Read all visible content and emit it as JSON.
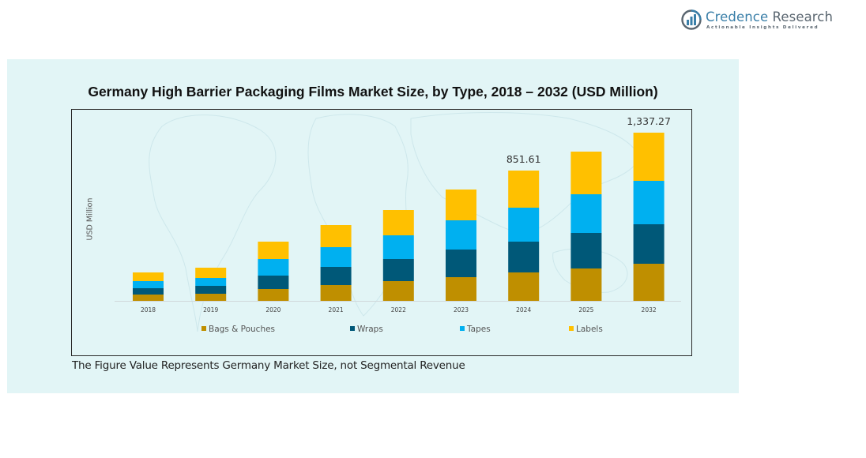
{
  "brand": {
    "name_part1": "Credence",
    "name_part2": " Research",
    "tagline": "Actionable Insights Delivered",
    "colors": {
      "primary": "#3a7fa8",
      "secondary": "#5a6670"
    }
  },
  "footnote": "The Figure Value Represents Germany Market Size, not Segmental Revenue",
  "chart_data": {
    "type": "bar",
    "stacked": true,
    "title": "Germany High Barrier Packaging Films Market Size, by Type, 2018 – 2032 (USD Million)",
    "xlabel": "",
    "ylabel": "USD Million",
    "grid": false,
    "legend_position": "bottom",
    "categories": [
      "2018",
      "2019",
      "2020",
      "2021",
      "2022",
      "2023",
      "2024",
      "2025",
      "2032"
    ],
    "series": [
      {
        "name": "Bags & Pouches",
        "color": "#bf8f00",
        "values": [
          41.3,
          46.4,
          77.4,
          103.2,
          129.0,
          154.8,
          185.8,
          211.6,
          295.1
        ]
      },
      {
        "name": "Wraps",
        "color": "#005878",
        "values": [
          41.3,
          51.6,
          87.7,
          118.7,
          144.5,
          180.6,
          201.3,
          232.2,
          313.9
        ]
      },
      {
        "name": "Tapes",
        "color": "#00b0f0",
        "values": [
          46.4,
          51.6,
          108.4,
          129.0,
          154.8,
          191.0,
          221.9,
          252.9,
          345.3
        ]
      },
      {
        "name": "Labels",
        "color": "#ffc000",
        "values": [
          56.8,
          67.1,
          113.5,
          144.5,
          165.2,
          201.3,
          242.6,
          278.7,
          383.0
        ]
      }
    ],
    "data_labels": [
      {
        "category": "2024",
        "text": "851.61"
      },
      {
        "category": "2032",
        "text": "1,337.27"
      }
    ],
    "totals": [
      185.8,
      216.7,
      387.0,
      495.4,
      593.5,
      727.7,
      851.61,
      975.4,
      1337.27
    ]
  }
}
